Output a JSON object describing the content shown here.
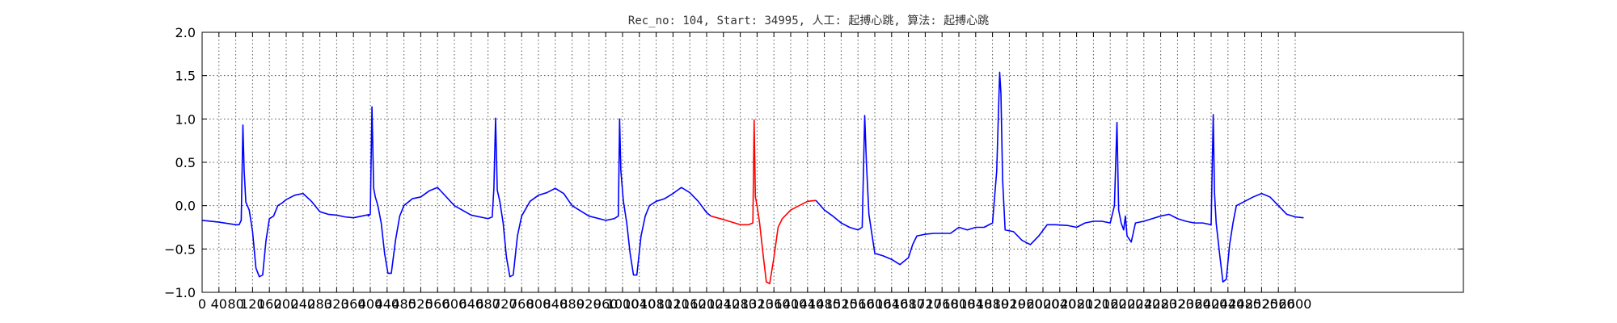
{
  "chart_data": {
    "type": "line",
    "title": "Rec_no: 104, Start: 34995, 人工: 起搏心跳, 算法: 起搏心跳",
    "xlabel": "",
    "ylabel": "",
    "xlim": [
      0,
      3000
    ],
    "ylim": [
      -1.0,
      2.0
    ],
    "grid": true,
    "yticks": [
      -1.0,
      -0.5,
      0.0,
      0.5,
      1.0,
      1.5,
      2.0
    ],
    "ytick_labels": [
      "−1.0",
      "−0.5",
      "0.0",
      "0.5",
      "1.0",
      "1.5",
      "2.0"
    ],
    "xticks": [
      0,
      40,
      80,
      120,
      160,
      200,
      240,
      280,
      320,
      360,
      400,
      440,
      480,
      520,
      560,
      600,
      640,
      680,
      720,
      760,
      800,
      840,
      880,
      920,
      960,
      1000,
      1040,
      1080,
      1120,
      1160,
      1200,
      1240,
      1280,
      1320,
      1360,
      1400,
      1440,
      1480,
      1520,
      1560,
      1600,
      1640,
      1680,
      1720,
      1760,
      1800,
      1840,
      1880,
      1920,
      1960,
      2000,
      2040,
      2080,
      2120,
      2160,
      2200,
      2240,
      2280,
      2320,
      2360,
      2400,
      2440,
      2480,
      2520,
      2560,
      2600
    ],
    "xtick_labels": [
      "0",
      "40",
      "80",
      "120",
      "160",
      "200",
      "240",
      "280",
      "320",
      "360",
      "400",
      "440",
      "480",
      "520",
      "560",
      "600",
      "640",
      "680",
      "720",
      "760",
      "800",
      "840",
      "880",
      "920",
      "960",
      "1000",
      "1040",
      "1080",
      "1120",
      "1160",
      "1200",
      "1240",
      "1280",
      "1320",
      "1360",
      "1400",
      "1440",
      "1480",
      "1520",
      "1560",
      "1600",
      "1640",
      "1680",
      "1720",
      "1760",
      "1800",
      "1840",
      "1880",
      "1920",
      "1960",
      "2000",
      "2040",
      "2080",
      "2120",
      "2160",
      "2200",
      "2240",
      "2280",
      "2320",
      "2360",
      "2400",
      "2440",
      "2480",
      "2520",
      "2560",
      "2600"
    ],
    "colors": {
      "normal": "#0000ff",
      "highlight": "#ff0000"
    },
    "series": [
      {
        "color": "#0000ff",
        "x": [
          0,
          40,
          80,
          88,
          93,
          97,
          100,
          104,
          112,
          120,
          128,
          136,
          144,
          152,
          160,
          170,
          180,
          190,
          200,
          220,
          240,
          260,
          280,
          300,
          320,
          340,
          360,
          380,
          400,
          395,
          400,
          404,
          408,
          412,
          418,
          426,
          434,
          442,
          450,
          460,
          470,
          480,
          500,
          520,
          540,
          560,
          600,
          640,
          680,
          690,
          694,
          698,
          702,
          708,
          716,
          724,
          732,
          740,
          750,
          760,
          780,
          800,
          820,
          840,
          860,
          880,
          920,
          960,
          980,
          990,
          993,
          996,
          1002,
          1010,
          1018,
          1026,
          1034,
          1044,
          1054,
          1064,
          1080,
          1100,
          1120,
          1140,
          1160,
          1180,
          1200,
          1210
        ],
        "y": [
          -0.17,
          -0.19,
          -0.22,
          -0.22,
          -0.17,
          0.93,
          0.4,
          0.04,
          -0.05,
          -0.3,
          -0.72,
          -0.82,
          -0.8,
          -0.4,
          -0.15,
          -0.12,
          0.0,
          0.03,
          0.07,
          0.12,
          0.14,
          0.05,
          -0.07,
          -0.1,
          -0.11,
          -0.13,
          -0.14,
          -0.12,
          -0.1,
          -0.12,
          -0.1,
          1.14,
          0.2,
          0.1,
          0.0,
          -0.2,
          -0.55,
          -0.78,
          -0.78,
          -0.4,
          -0.12,
          0.0,
          0.08,
          0.1,
          0.17,
          0.21,
          0.0,
          -0.11,
          -0.15,
          -0.13,
          0.2,
          1.01,
          0.18,
          0.05,
          -0.2,
          -0.6,
          -0.82,
          -0.8,
          -0.35,
          -0.12,
          0.05,
          0.12,
          0.15,
          0.2,
          0.14,
          0.0,
          -0.12,
          -0.17,
          -0.15,
          -0.12,
          1.0,
          0.4,
          0.05,
          -0.2,
          -0.55,
          -0.8,
          -0.8,
          -0.35,
          -0.12,
          0.0,
          0.05,
          0.08,
          0.14,
          0.21,
          0.15,
          0.05,
          -0.08,
          -0.12
        ]
      },
      {
        "color": "#ff0000",
        "x": [
          1210,
          1240,
          1280,
          1300,
          1310,
          1313,
          1316,
          1320,
          1326,
          1334,
          1342,
          1350,
          1360,
          1370,
          1380,
          1400,
          1420,
          1440,
          1460
        ],
        "y": [
          -0.12,
          -0.16,
          -0.22,
          -0.22,
          -0.2,
          0.99,
          0.1,
          0.0,
          -0.2,
          -0.55,
          -0.88,
          -0.9,
          -0.6,
          -0.25,
          -0.15,
          -0.05,
          0.0,
          0.05,
          0.06
        ]
      },
      {
        "color": "#0000ff",
        "x": [
          1460,
          1480,
          1500,
          1520,
          1540,
          1560,
          1570,
          1576,
          1580,
          1586,
          1600,
          1620,
          1640,
          1660,
          1680,
          1690,
          1700,
          1720,
          1740,
          1760,
          1780,
          1800,
          1820,
          1840,
          1860,
          1880,
          1890,
          1897,
          1900,
          1904,
          1910,
          1930,
          1950,
          1970,
          1990,
          2010,
          2030,
          2060,
          2080,
          2100,
          2120,
          2140,
          2160,
          2170,
          2176,
          2180,
          2186,
          2192,
          2196,
          2200,
          2210,
          2220,
          2240,
          2260,
          2280,
          2300,
          2320,
          2340,
          2360,
          2380,
          2400,
          2405,
          2408,
          2412,
          2420,
          2428,
          2436,
          2444,
          2452,
          2460,
          2480,
          2500,
          2520,
          2540,
          2560,
          2580,
          2600,
          2620
        ],
        "y": [
          0.06,
          -0.05,
          -0.12,
          -0.2,
          -0.25,
          -0.28,
          -0.25,
          1.04,
          0.5,
          -0.1,
          -0.55,
          -0.58,
          -0.62,
          -0.68,
          -0.6,
          -0.45,
          -0.35,
          -0.33,
          -0.32,
          -0.32,
          -0.32,
          -0.25,
          -0.28,
          -0.25,
          -0.25,
          -0.2,
          0.4,
          1.54,
          1.3,
          0.3,
          -0.28,
          -0.3,
          -0.4,
          -0.45,
          -0.35,
          -0.22,
          -0.22,
          -0.23,
          -0.25,
          -0.2,
          -0.18,
          -0.18,
          -0.2,
          0.0,
          0.96,
          -0.05,
          -0.2,
          -0.28,
          -0.12,
          -0.35,
          -0.42,
          -0.2,
          -0.18,
          -0.15,
          -0.12,
          -0.1,
          -0.15,
          -0.18,
          -0.2,
          -0.2,
          -0.22,
          1.05,
          0.15,
          -0.2,
          -0.55,
          -0.88,
          -0.85,
          -0.45,
          -0.2,
          0.0,
          0.05,
          0.1,
          0.14,
          0.1,
          0.0,
          -0.1,
          -0.13,
          -0.14
        ]
      }
    ]
  }
}
